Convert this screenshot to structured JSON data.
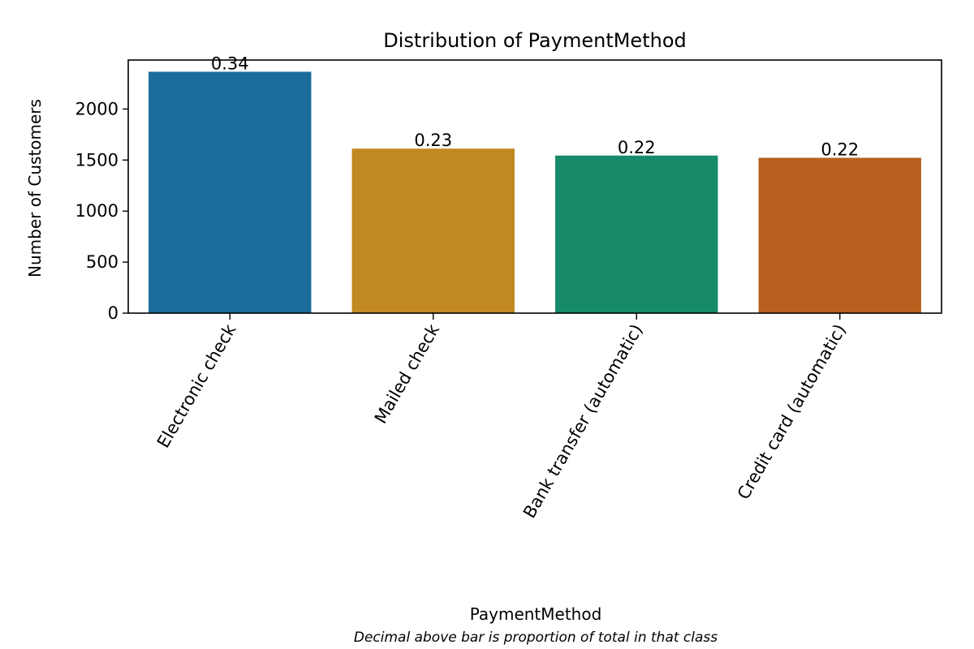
{
  "chart_data": {
    "type": "bar",
    "title": "Distribution of PaymentMethod",
    "xlabel": "PaymentMethod",
    "ylabel": "Number of Customers",
    "caption": "Decimal above bar is proportion of total in that class",
    "categories": [
      "Electronic check",
      "Mailed check",
      "Bank transfer (automatic)",
      "Credit card (automatic)"
    ],
    "values": [
      2365,
      1612,
      1544,
      1522
    ],
    "proportions": [
      "0.34",
      "0.23",
      "0.22",
      "0.22"
    ],
    "colors": [
      "#1a6c9c",
      "#c28822",
      "#178b69",
      "#b8611e"
    ],
    "ylim": [
      0,
      2480
    ],
    "yticks": [
      0,
      500,
      1000,
      1500,
      2000
    ],
    "grid": false,
    "legend": "none"
  }
}
